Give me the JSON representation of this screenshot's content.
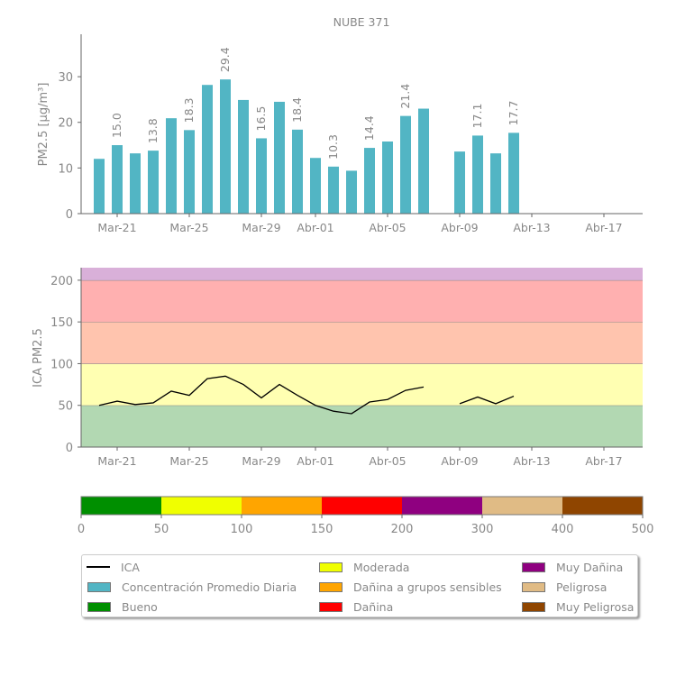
{
  "chart_data": [
    {
      "type": "bar",
      "title": "NUBE 371",
      "ylabel": "PM2.5 [μg/m³]",
      "ylim": [
        0,
        39.3
      ],
      "yticks": [
        0,
        10,
        20,
        30
      ],
      "dates": [
        "Mar-20",
        "Mar-21",
        "Mar-22",
        "Mar-23",
        "Mar-24",
        "Mar-25",
        "Mar-26",
        "Mar-27",
        "Mar-28",
        "Mar-29",
        "Mar-30",
        "Mar-31",
        "Abr-01",
        "Abr-02",
        "Abr-03",
        "Abr-04",
        "Abr-05",
        "Abr-06",
        "Abr-07",
        "Abr-08",
        "Abr-09",
        "Abr-10",
        "Abr-11",
        "Abr-12"
      ],
      "values": [
        12.0,
        15.0,
        13.2,
        13.8,
        20.9,
        18.3,
        28.2,
        29.4,
        24.9,
        16.5,
        24.5,
        18.4,
        12.2,
        10.3,
        9.4,
        14.4,
        15.8,
        21.4,
        23.0,
        null,
        13.6,
        17.1,
        13.2,
        17.7
      ],
      "data_labels": [
        null,
        "15.0",
        null,
        "13.8",
        null,
        "18.3",
        null,
        "29.4",
        null,
        "16.5",
        null,
        "18.4",
        null,
        "10.3",
        null,
        "14.4",
        null,
        "21.4",
        null,
        null,
        null,
        "17.1",
        null,
        "17.7"
      ],
      "xticks": [
        "Mar-21",
        "Mar-25",
        "Mar-29",
        "Abr-01",
        "Abr-05",
        "Abr-09",
        "Abr-13",
        "Abr-17"
      ],
      "bar_color": "#52b5c4"
    },
    {
      "type": "line",
      "ylabel": "ICA PM2.5",
      "ylim": [
        0,
        215
      ],
      "yticks": [
        0,
        50,
        100,
        150,
        200
      ],
      "values": [
        50,
        55,
        51,
        53,
        67,
        62,
        82,
        85,
        75,
        59,
        75,
        62,
        50,
        43,
        40,
        54,
        57,
        68,
        72,
        null,
        52,
        60,
        52,
        61
      ],
      "xticks": [
        "Mar-21",
        "Mar-25",
        "Mar-29",
        "Abr-01",
        "Abr-05",
        "Abr-09",
        "Abr-13",
        "Abr-17"
      ],
      "bands": [
        {
          "from": 0,
          "to": 50,
          "color": "#b2d8b2"
        },
        {
          "from": 50,
          "to": 100,
          "color": "#ffffb2"
        },
        {
          "from": 100,
          "to": 150,
          "color": "#ffc4ae"
        },
        {
          "from": 150,
          "to": 200,
          "color": "#ffb0b0"
        },
        {
          "from": 200,
          "to": 215,
          "color": "#d9b0d9"
        }
      ]
    }
  ],
  "colorbar": {
    "ticks": [
      "0",
      "50",
      "100",
      "150",
      "200",
      "300",
      "400",
      "500"
    ],
    "colors": [
      "#008f00",
      "#f0ff00",
      "#ffa500",
      "#ff0000",
      "#8f0080",
      "#e0bb85",
      "#8f4500"
    ]
  },
  "legend": {
    "col1": [
      {
        "label": "ICA",
        "kind": "line",
        "color": "#000000"
      },
      {
        "label": "Concentración Promedio Diaria",
        "kind": "box",
        "color": "#52b5c4"
      },
      {
        "label": "Bueno",
        "kind": "box",
        "color": "#008f00"
      }
    ],
    "col2": [
      {
        "label": "Moderada",
        "kind": "box",
        "color": "#f0ff00"
      },
      {
        "label": "Dañina a grupos sensibles",
        "kind": "box",
        "color": "#ffa500"
      },
      {
        "label": "Dañina",
        "kind": "box",
        "color": "#ff0000"
      }
    ],
    "col3": [
      {
        "label": "Muy Dañina",
        "kind": "box",
        "color": "#8f0080"
      },
      {
        "label": "Peligrosa",
        "kind": "box",
        "color": "#e0bb85"
      },
      {
        "label": "Muy Peligrosa",
        "kind": "box",
        "color": "#8f4500"
      }
    ]
  }
}
